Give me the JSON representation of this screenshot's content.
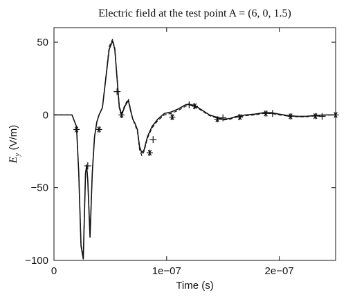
{
  "chart_data": {
    "type": "line",
    "title": "Electric field at the test point A = (6, 0, 1.5)",
    "xlabel": "Time (s)",
    "ylabel": {
      "main": "E",
      "subscript": "y",
      "units": " (V/m)"
    },
    "xlim": [
      0,
      2.5e-07
    ],
    "ylim": [
      -100,
      60
    ],
    "x_ticks": [
      {
        "value": 0,
        "label": "0"
      },
      {
        "value": 1e-07,
        "label": "1e−07"
      },
      {
        "value": 2e-07,
        "label": "2e−07"
      }
    ],
    "y_ticks": [
      {
        "value": 50,
        "label": "50"
      },
      {
        "value": 0,
        "label": "0"
      },
      {
        "value": -50,
        "label": "−50"
      },
      {
        "value": -100,
        "label": "−100"
      }
    ],
    "grid": false,
    "series": [
      {
        "style": "solid",
        "x": [
          0,
          1.6e-08,
          2e-08,
          2.2e-08,
          2.4e-08,
          2.6e-08,
          2.8e-08,
          2.9e-08,
          3e-08,
          3.2e-08,
          3.4e-08,
          3.6e-08,
          3.8e-08,
          4e-08,
          4.3e-08,
          4.6e-08,
          4.9e-08,
          5.2e-08,
          5.4e-08,
          5.6e-08,
          5.8e-08,
          6e-08,
          6.3e-08,
          6.6e-08,
          6.8e-08,
          7e-08,
          7.2e-08,
          7.4e-08,
          7.6e-08,
          7.8e-08,
          8e-08,
          8.3e-08,
          8.7e-08,
          9.2e-08,
          9.8e-08,
          1.04e-07,
          1.1e-07,
          1.17e-07,
          1.2e-07,
          1.26e-07,
          1.32e-07,
          1.38e-07,
          1.44e-07,
          1.5e-07,
          1.56e-07,
          1.62e-07,
          1.7e-07,
          1.78e-07,
          1.86e-07,
          1.93e-07,
          2e-07,
          2.08e-07,
          2.16e-07,
          2.24e-07,
          2.3e-07,
          2.4e-07,
          2.5e-07
        ],
        "y": [
          0,
          0,
          -8,
          -40,
          -90,
          -99,
          -40,
          -35,
          -45,
          -84,
          -40,
          -15,
          -5,
          0,
          5,
          25,
          45,
          51,
          45,
          25,
          5,
          0,
          6,
          10,
          3,
          -3,
          -6,
          -10,
          -22,
          -26,
          -24,
          -15,
          -8,
          -3,
          1,
          2,
          4,
          7,
          7.5,
          6,
          3,
          0,
          -1.5,
          -3,
          -2.5,
          -1,
          0,
          0.5,
          1.5,
          1.5,
          0.5,
          -0.5,
          -1,
          -1,
          -0.5,
          0,
          0
        ]
      },
      {
        "style": "dashed",
        "x": [
          0,
          1.6e-08,
          2e-08,
          2.2e-08,
          2.4e-08,
          2.6e-08,
          2.8e-08,
          2.9e-08,
          3e-08,
          3.2e-08,
          3.4e-08,
          3.6e-08,
          3.8e-08,
          4e-08,
          4.3e-08,
          4.6e-08,
          4.9e-08,
          5.2e-08,
          5.4e-08,
          5.6e-08,
          5.8e-08,
          6e-08,
          6.3e-08,
          6.6e-08,
          6.8e-08,
          7e-08,
          7.2e-08,
          7.4e-08,
          7.6e-08,
          7.8e-08,
          8e-08,
          8.3e-08,
          8.7e-08,
          9.2e-08,
          9.8e-08,
          1.04e-07,
          1.1e-07,
          1.17e-07,
          1.2e-07,
          1.26e-07,
          1.32e-07,
          1.38e-07,
          1.44e-07,
          1.5e-07,
          1.56e-07,
          1.62e-07,
          1.7e-07,
          1.78e-07,
          1.86e-07,
          1.93e-07,
          2e-07,
          2.08e-07,
          2.16e-07,
          2.24e-07,
          2.3e-07,
          2.4e-07,
          2.5e-07
        ],
        "y": [
          0,
          0,
          -8,
          -40,
          -89,
          -97,
          -40,
          -34,
          -44,
          -83,
          -40,
          -15,
          -5,
          0,
          5,
          26,
          47,
          52,
          46,
          26,
          6,
          1,
          7,
          11,
          4,
          -3,
          -7,
          -11,
          -24,
          -28,
          -25,
          -16,
          -9,
          -4,
          0,
          1,
          3,
          6,
          7,
          5.5,
          2.5,
          -0.5,
          -2,
          -3.5,
          -3,
          -1.5,
          -0.5,
          0,
          1,
          1,
          0,
          -0.8,
          -1.3,
          -1.3,
          -0.8,
          -0.2,
          0
        ]
      },
      {
        "style": "markers-star",
        "x": [
          2e-08,
          4e-08,
          6e-08,
          8.5e-08,
          1.05e-07,
          1.25e-07,
          1.45e-07,
          1.65e-07,
          1.88e-07,
          2.1e-07,
          2.32e-07,
          2.5e-07
        ],
        "y": [
          -10,
          -10,
          0,
          -26,
          -1.5,
          6,
          -3,
          -1.5,
          1,
          -1,
          -0.8,
          0
        ]
      },
      {
        "style": "markers-plus",
        "x": [
          3e-08,
          5.6e-08,
          8.8e-08,
          1.2e-07,
          1.5e-07,
          1.94e-07,
          2.38e-07
        ],
        "y": [
          -35,
          16,
          -17,
          7,
          -2,
          1,
          -1
        ]
      }
    ]
  }
}
